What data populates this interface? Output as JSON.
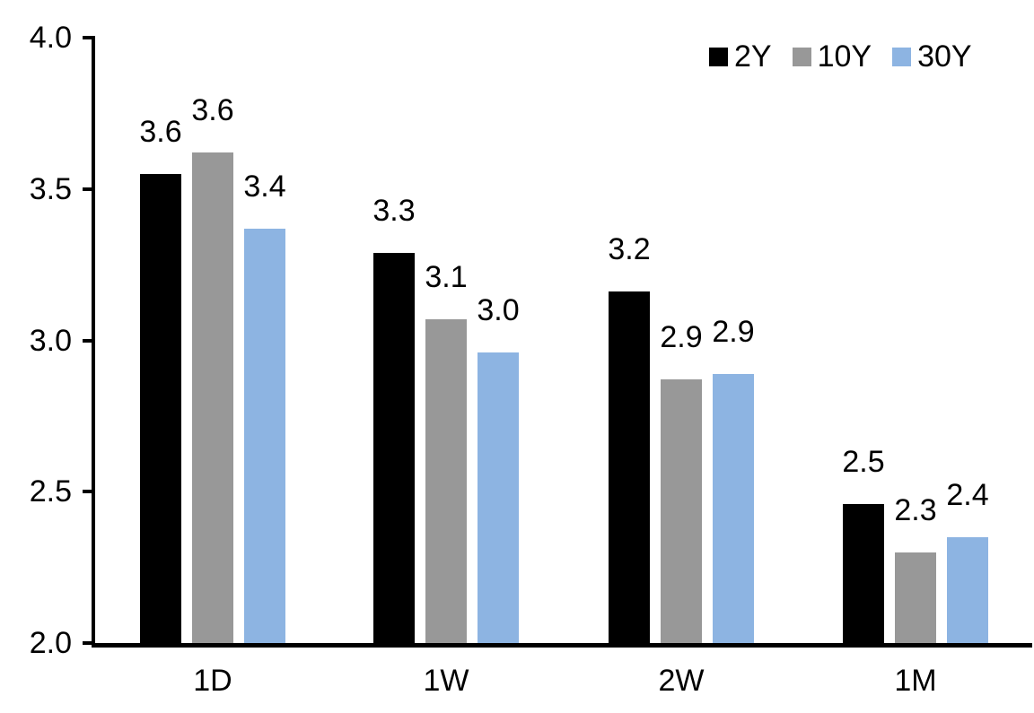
{
  "chart_data": {
    "type": "bar",
    "title": "",
    "xlabel": "",
    "ylabel": "",
    "categories": [
      "1D",
      "1W",
      "2W",
      "1M"
    ],
    "series": [
      {
        "name": "2Y",
        "color": "#000000",
        "values": [
          3.6,
          3.3,
          3.2,
          2.5
        ],
        "values_precise": [
          3.55,
          3.29,
          3.16,
          2.46
        ],
        "labels": [
          "3.6",
          "3.3",
          "3.2",
          "2.5"
        ]
      },
      {
        "name": "10Y",
        "color": "#989898",
        "values": [
          3.6,
          3.1,
          2.9,
          2.3
        ],
        "values_precise": [
          3.62,
          3.07,
          2.87,
          2.3
        ],
        "labels": [
          "3.6",
          "3.1",
          "2.9",
          "2.3"
        ]
      },
      {
        "name": "30Y",
        "color": "#8DB4E2",
        "values": [
          3.4,
          3.0,
          2.9,
          2.4
        ],
        "values_precise": [
          3.37,
          2.96,
          2.89,
          2.35
        ],
        "labels": [
          "3.4",
          "3.0",
          "2.9",
          "2.4"
        ]
      }
    ],
    "ylim": [
      2.0,
      4.0
    ],
    "ytick_values": [
      4.0,
      3.5,
      3.0,
      2.5,
      2.0
    ],
    "ytick_labels": [
      "4.0",
      "3.5",
      "3.0",
      "2.5",
      "2.0"
    ],
    "grid": false,
    "legend_position": "top-right",
    "axis_color": "#000000",
    "text_color": "#000000",
    "background": "#FFFFFF"
  }
}
